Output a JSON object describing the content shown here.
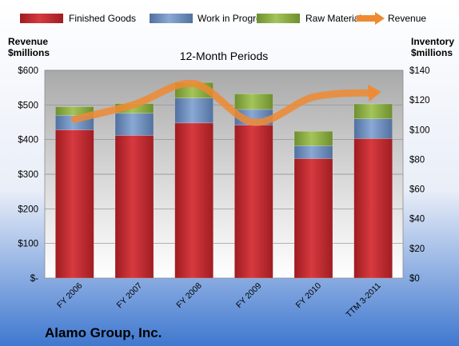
{
  "chart_data": {
    "type": "bar",
    "subtitle": "12-Month Periods",
    "company": "Alamo Group, Inc.",
    "left_axis_title": [
      "Revenue",
      "$millions"
    ],
    "right_axis_title": [
      "Inventory",
      "$millions"
    ],
    "categories": [
      "FY 2006",
      "FY 2007",
      "FY 2008",
      "FY 2009",
      "FY 2010",
      "TTM 3-2011"
    ],
    "left_ticks": [
      "$-",
      "$100",
      "$200",
      "$300",
      "$400",
      "$500",
      "$600"
    ],
    "right_ticks": [
      "$0",
      "$20",
      "$40",
      "$60",
      "$80",
      "$100",
      "$120",
      "$140"
    ],
    "ylim_left": [
      0,
      600
    ],
    "ylim_right": [
      0,
      140
    ],
    "legend": [
      "Finished Goods",
      "Work in Progress",
      "Raw Materials",
      "Revenue"
    ],
    "legend_position": "top",
    "series": [
      {
        "name": "Finished Goods",
        "axis": "left",
        "stack": true,
        "color": "#c0272d",
        "values": [
          428,
          412,
          448,
          442,
          345,
          403
        ]
      },
      {
        "name": "Work in Progress",
        "axis": "left",
        "stack": true,
        "color": "#6e8fbf",
        "values": [
          42,
          64,
          72,
          45,
          37,
          57
        ]
      },
      {
        "name": "Raw Materials",
        "axis": "left",
        "stack": true,
        "color": "#8fb04a",
        "values": [
          25,
          28,
          45,
          45,
          42,
          43
        ]
      },
      {
        "name": "Revenue",
        "axis": "right",
        "type": "line",
        "color": "#ee8a32",
        "values": [
          107,
          117,
          131,
          105,
          122,
          125
        ]
      }
    ],
    "grid": true
  }
}
